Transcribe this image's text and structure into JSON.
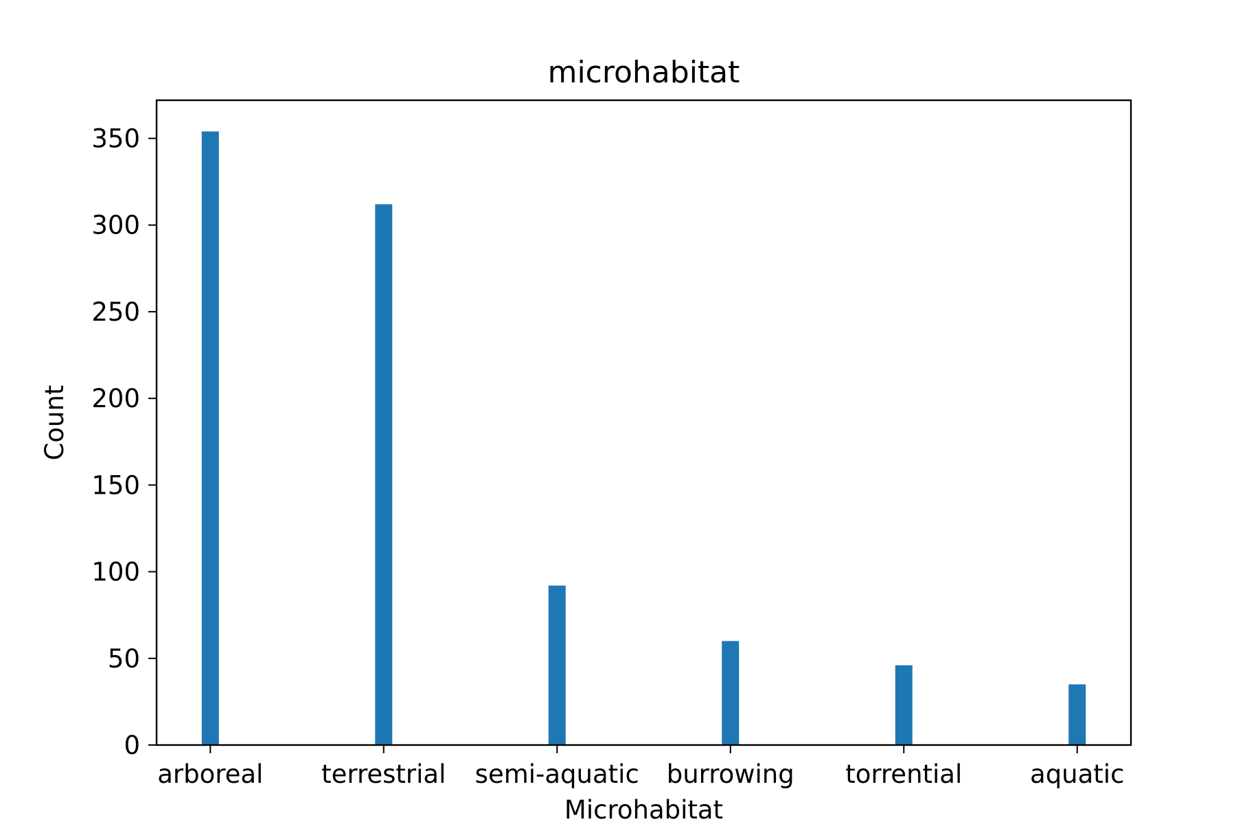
{
  "chart_data": {
    "type": "bar",
    "title": "microhabitat",
    "xlabel": "Microhabitat",
    "ylabel": "Count",
    "categories": [
      "arboreal",
      "terrestrial",
      "semi-aquatic",
      "burrowing",
      "torrential",
      "aquatic"
    ],
    "values": [
      354,
      312,
      92,
      60,
      46,
      35
    ],
    "ylim": [
      0,
      372
    ],
    "yticks": [
      0,
      50,
      100,
      150,
      200,
      250,
      300,
      350
    ],
    "bar_color": "#1f77b4",
    "grid": false,
    "legend": "none"
  }
}
